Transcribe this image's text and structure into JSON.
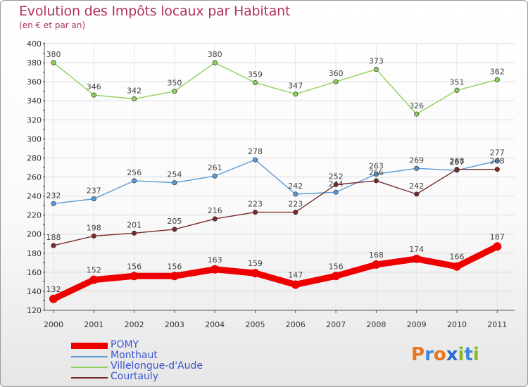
{
  "title": "Evolution des Impôts locaux par Habitant",
  "subtitle": "(en € et par an)",
  "logo": {
    "text": "Proxiti",
    "letters": [
      "P",
      "r",
      "o",
      "x",
      "i",
      "t",
      "i"
    ],
    "colors": [
      "#e8761c",
      "#3a8ad8",
      "#e8761c",
      "#2a6ad0",
      "#8ab820",
      "#3a8ad8",
      "#8ab820"
    ]
  },
  "chart_data": {
    "type": "line",
    "title": "Evolution des Impôts locaux par Habitant",
    "subtitle": "(en € et par an)",
    "xlabel": "",
    "ylabel": "",
    "x": [
      "2000",
      "2001",
      "2002",
      "2003",
      "2004",
      "2005",
      "2006",
      "2007",
      "2008",
      "2009",
      "2010",
      "2011"
    ],
    "ylim": [
      120,
      400
    ],
    "yticks": [
      120,
      140,
      160,
      180,
      200,
      220,
      240,
      260,
      280,
      300,
      320,
      340,
      360,
      380,
      400
    ],
    "grid": true,
    "legend_position": "bottom-left",
    "series": [
      {
        "name": "POMY",
        "color": "#ee0000",
        "values": [
          132,
          152,
          156,
          156,
          163,
          159,
          147,
          156,
          168,
          174,
          166,
          187
        ]
      },
      {
        "name": "Monthaut",
        "color": "#5b9bd5",
        "values": [
          232,
          237,
          256,
          254,
          261,
          278,
          242,
          244,
          263,
          269,
          267,
          277
        ]
      },
      {
        "name": "Villelongue-d'Aude",
        "color": "#8fd15a",
        "values": [
          380,
          346,
          342,
          350,
          380,
          359,
          347,
          360,
          373,
          326,
          351,
          362
        ]
      },
      {
        "name": "Courtauly",
        "color": "#7a2a2a",
        "values": [
          188,
          198,
          201,
          205,
          216,
          223,
          223,
          252,
          256,
          242,
          268,
          268
        ]
      }
    ]
  }
}
